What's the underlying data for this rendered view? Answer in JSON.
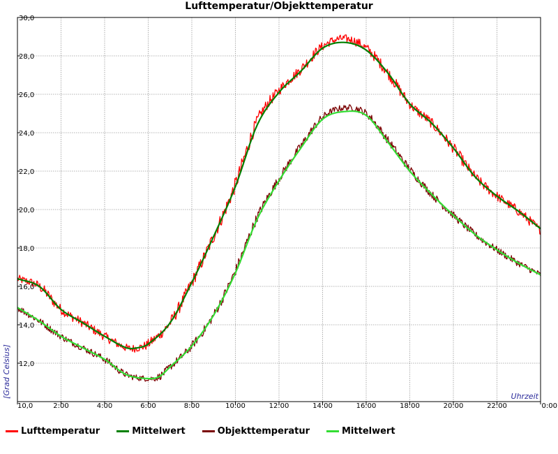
{
  "chart_data": {
    "type": "line",
    "title": "Lufttemperatur/Objekttemperatur",
    "xlabel": "Uhrzeit",
    "ylabel": "[Grad Celsius]",
    "xlim": [
      0,
      24
    ],
    "ylim": [
      10,
      30
    ],
    "x_ticks": [
      {
        "value": 0,
        "label": "10,0"
      },
      {
        "value": 2,
        "label": "2:00"
      },
      {
        "value": 4,
        "label": "4:00"
      },
      {
        "value": 6,
        "label": "6:00"
      },
      {
        "value": 8,
        "label": "8:00"
      },
      {
        "value": 10,
        "label": "10:00"
      },
      {
        "value": 12,
        "label": "12:00"
      },
      {
        "value": 14,
        "label": "14:00"
      },
      {
        "value": 16,
        "label": "16:00"
      },
      {
        "value": 18,
        "label": "18:00"
      },
      {
        "value": 20,
        "label": "20:00"
      },
      {
        "value": 22,
        "label": "22:00"
      },
      {
        "value": 24,
        "label": "0:00"
      }
    ],
    "y_ticks": [
      {
        "value": 12,
        "label": "12,0"
      },
      {
        "value": 14,
        "label": "14,0"
      },
      {
        "value": 16,
        "label": "16,0"
      },
      {
        "value": 18,
        "label": "18,0"
      },
      {
        "value": 20,
        "label": "20,0"
      },
      {
        "value": 22,
        "label": "22,0"
      },
      {
        "value": 24,
        "label": "24,0"
      },
      {
        "value": 26,
        "label": "26,0"
      },
      {
        "value": 28,
        "label": "28,0"
      },
      {
        "value": 30,
        "label": "30,0"
      }
    ],
    "grid": true,
    "legend_position": "bottom",
    "series": [
      {
        "name": "Lufttemperatur",
        "color": "#ff0000",
        "noise": 0.2,
        "x": [
          0,
          1,
          2,
          3,
          4,
          5,
          5.5,
          6,
          7,
          8,
          9,
          10,
          11,
          12,
          13,
          14,
          15,
          16,
          17,
          18,
          19,
          20,
          21,
          22,
          23,
          24
        ],
        "y": [
          16.4,
          16.0,
          14.8,
          14.1,
          13.4,
          12.8,
          12.8,
          13.0,
          14.1,
          16.2,
          18.6,
          21.3,
          24.6,
          26.2,
          27.3,
          28.5,
          28.9,
          28.4,
          27.1,
          25.5,
          24.5,
          23.2,
          21.7,
          20.7,
          19.9,
          18.9
        ]
      },
      {
        "name": "Mittelwert",
        "color": "#008000",
        "noise": 0,
        "x": [
          0,
          1,
          2,
          3,
          4,
          5,
          5.5,
          6,
          7,
          8,
          9,
          10,
          11,
          12,
          13,
          14,
          15,
          16,
          17,
          18,
          19,
          20,
          21,
          22,
          23,
          24
        ],
        "y": [
          16.4,
          16.0,
          14.8,
          14.1,
          13.4,
          12.8,
          12.8,
          13.0,
          14.1,
          16.2,
          18.6,
          21.2,
          24.4,
          26.1,
          27.2,
          28.4,
          28.7,
          28.3,
          27.1,
          25.5,
          24.5,
          23.2,
          21.7,
          20.7,
          19.9,
          19.0
        ]
      },
      {
        "name": "Objekttemperatur",
        "color": "#7a0000",
        "noise": 0.15,
        "x": [
          0,
          1,
          2,
          3,
          4,
          5,
          6,
          6.5,
          7,
          8,
          9,
          10,
          11,
          12,
          13,
          14,
          15,
          16,
          17,
          18,
          19,
          20,
          21,
          22,
          23,
          24
        ],
        "y": [
          14.9,
          14.2,
          13.4,
          12.8,
          12.2,
          11.4,
          11.2,
          11.3,
          11.8,
          12.9,
          14.5,
          16.8,
          19.6,
          21.6,
          23.3,
          24.8,
          25.3,
          25.0,
          23.6,
          22.1,
          20.8,
          19.7,
          18.7,
          17.9,
          17.2,
          16.6
        ]
      },
      {
        "name": "Mittelwert",
        "color": "#33dd33",
        "noise": 0,
        "x": [
          0,
          1,
          2,
          3,
          4,
          5,
          6,
          6.5,
          7,
          8,
          9,
          10,
          11,
          12,
          13,
          14,
          15,
          16,
          17,
          18,
          19,
          20,
          21,
          22,
          23,
          24
        ],
        "y": [
          14.9,
          14.2,
          13.4,
          12.8,
          12.2,
          11.4,
          11.2,
          11.3,
          11.8,
          12.9,
          14.5,
          16.7,
          19.5,
          21.5,
          23.2,
          24.7,
          25.1,
          24.9,
          23.5,
          22.0,
          20.8,
          19.7,
          18.7,
          17.9,
          17.2,
          16.6
        ]
      }
    ]
  }
}
